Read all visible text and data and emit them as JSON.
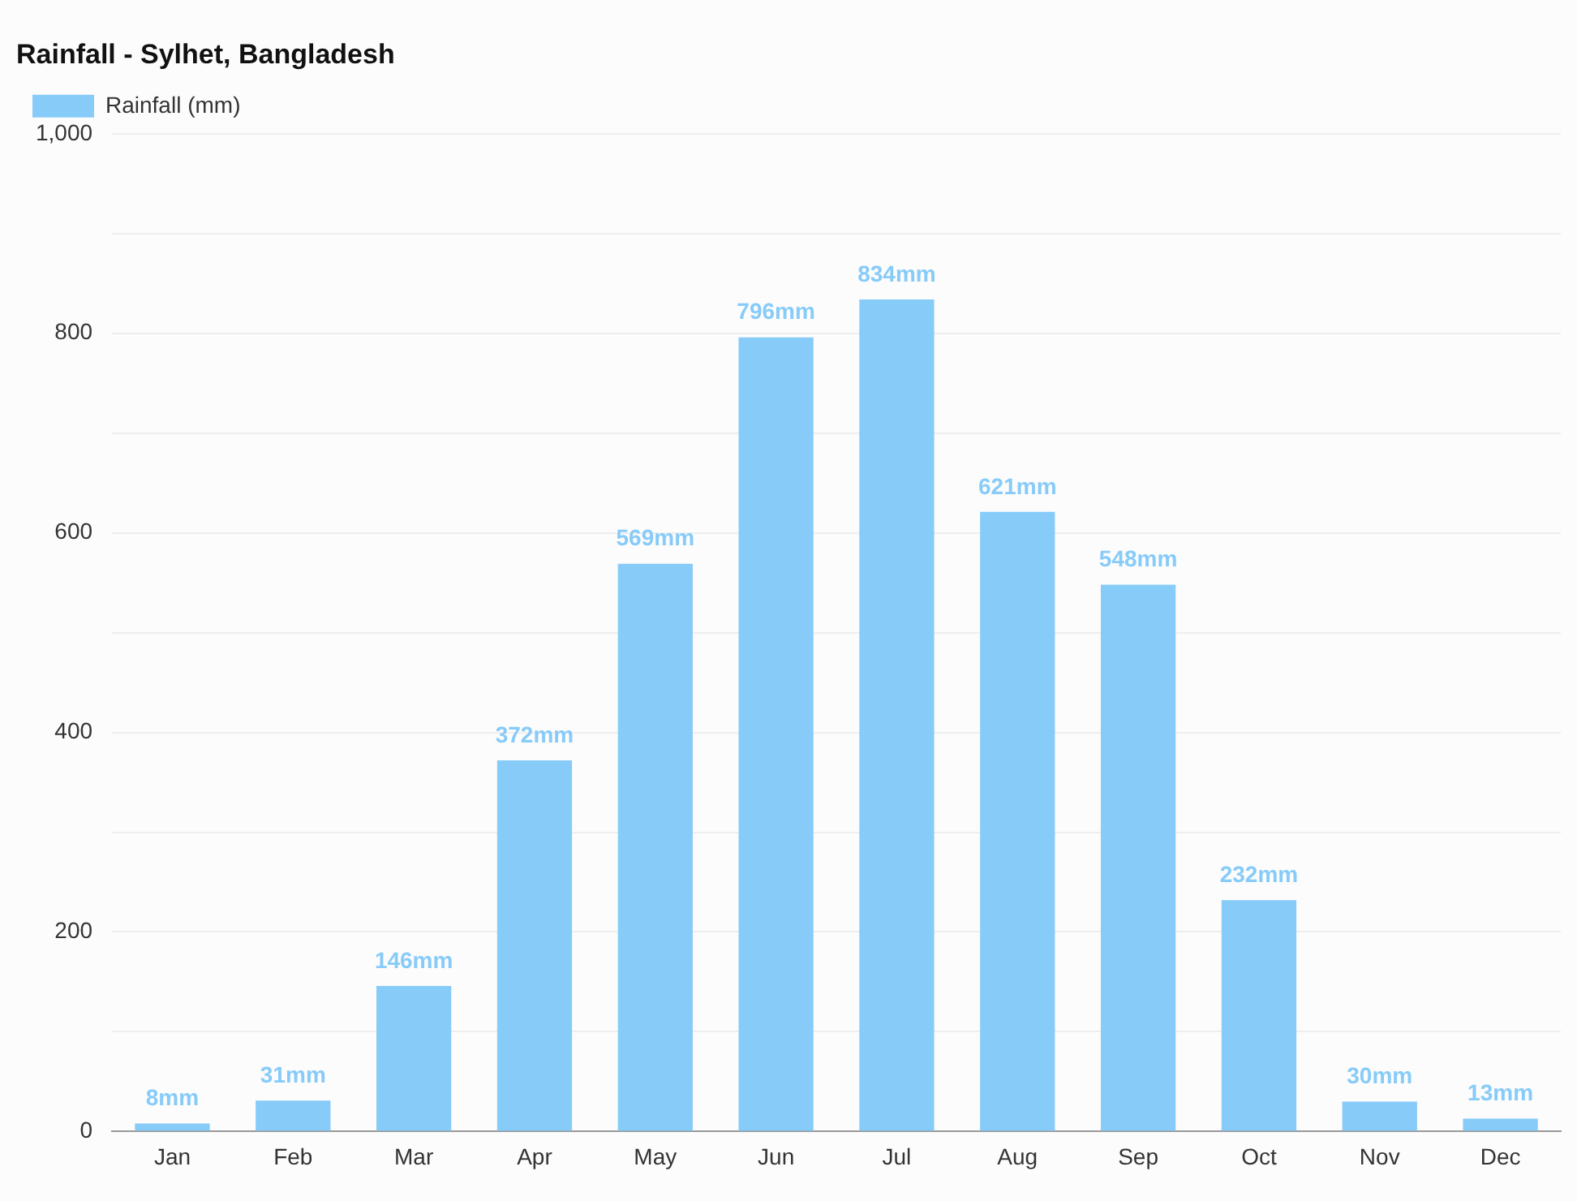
{
  "chart_data": {
    "type": "bar",
    "title": "Rainfall - Sylhet, Bangladesh",
    "categories": [
      "Jan",
      "Feb",
      "Mar",
      "Apr",
      "May",
      "Jun",
      "Jul",
      "Aug",
      "Sep",
      "Oct",
      "Nov",
      "Dec"
    ],
    "series": [
      {
        "name": "Rainfall (mm)",
        "color": "#87cbf9",
        "values": [
          8,
          31,
          146,
          372,
          569,
          796,
          834,
          621,
          548,
          232,
          30,
          13
        ],
        "value_labels": [
          "8mm",
          "31mm",
          "146mm",
          "372mm",
          "569mm",
          "796mm",
          "834mm",
          "621mm",
          "548mm",
          "232mm",
          "30mm",
          "13mm"
        ]
      }
    ],
    "ylim": [
      0,
      1000
    ],
    "yticks": [
      {
        "value": 0,
        "label": "0"
      },
      {
        "value": 100,
        "label": null
      },
      {
        "value": 200,
        "label": "200"
      },
      {
        "value": 300,
        "label": null
      },
      {
        "value": 400,
        "label": "400"
      },
      {
        "value": 500,
        "label": null
      },
      {
        "value": 600,
        "label": "600"
      },
      {
        "value": 700,
        "label": null
      },
      {
        "value": 800,
        "label": "800"
      },
      {
        "value": 900,
        "label": null
      },
      {
        "value": 1000,
        "label": "1,000"
      }
    ],
    "grid": "y",
    "legend": "top left"
  }
}
